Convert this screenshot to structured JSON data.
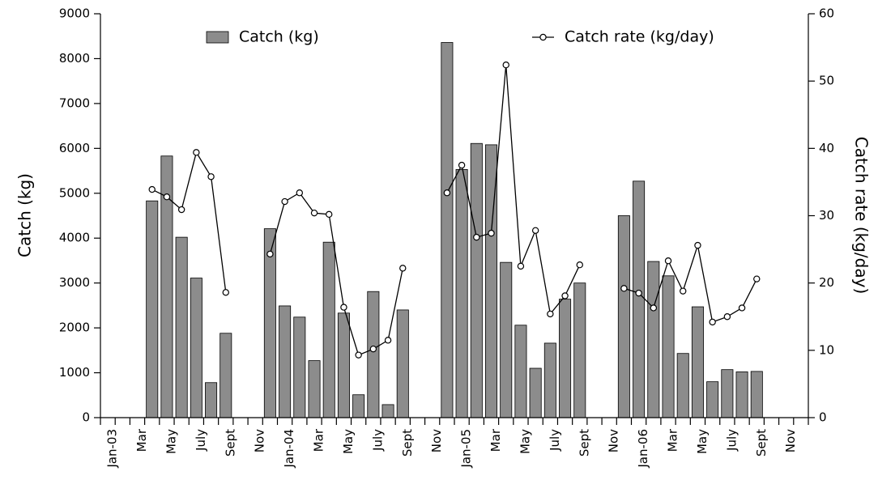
{
  "chart_data": {
    "type": "bar",
    "categories": [
      "Jan-03",
      null,
      "Mar",
      null,
      "May",
      null,
      "July",
      null,
      "Sept",
      null,
      "Nov",
      null,
      "Jan-04",
      null,
      "Mar",
      null,
      "May",
      null,
      "July",
      null,
      "Sept",
      null,
      "Nov",
      null,
      "Jan-05",
      null,
      "Mar",
      null,
      "May",
      null,
      "July",
      null,
      "Sept",
      null,
      "Nov",
      null,
      "Jan-06",
      null,
      "Mar",
      null,
      "May",
      null,
      "July",
      null,
      "Sept",
      null,
      "Nov",
      null
    ],
    "y_label": "Catch (kg)",
    "y2_label": "Catch rate (kg/day)",
    "ylim": [
      0,
      9000
    ],
    "yticks": [
      0,
      1000,
      2000,
      3000,
      4000,
      5000,
      6000,
      7000,
      8000,
      9000
    ],
    "y2lim": [
      0,
      60
    ],
    "y2ticks": [
      0,
      10,
      20,
      30,
      40,
      50,
      60
    ],
    "legend": "top",
    "series": [
      {
        "name": "Catch (kg)",
        "type": "bar",
        "color": "#8c8c8c",
        "values": [
          null,
          null,
          null,
          4830,
          5830,
          4020,
          3110,
          780,
          1880,
          null,
          null,
          4210,
          2490,
          2240,
          1270,
          3910,
          2330,
          510,
          2810,
          290,
          2400,
          null,
          null,
          8360,
          5530,
          6110,
          6080,
          3460,
          2060,
          1100,
          1660,
          2640,
          3000,
          null,
          null,
          4500,
          5270,
          3480,
          3160,
          1430,
          2470,
          800,
          1070,
          1020,
          1030,
          null,
          null,
          null
        ]
      },
      {
        "name": "Catch rate (kg/day)",
        "type": "line",
        "axis": "y2",
        "color": "#000000",
        "values": [
          null,
          null,
          null,
          33.9,
          32.8,
          30.9,
          39.4,
          35.8,
          18.6,
          null,
          null,
          24.3,
          32.1,
          33.4,
          30.4,
          30.2,
          16.4,
          9.3,
          10.2,
          11.5,
          22.2,
          null,
          null,
          33.4,
          37.5,
          26.8,
          27.4,
          52.4,
          22.5,
          27.8,
          15.4,
          18.1,
          22.7,
          null,
          null,
          19.2,
          18.5,
          16.3,
          23.3,
          18.8,
          25.6,
          14.2,
          15.0,
          16.3,
          20.6,
          null,
          null,
          null
        ]
      }
    ]
  }
}
